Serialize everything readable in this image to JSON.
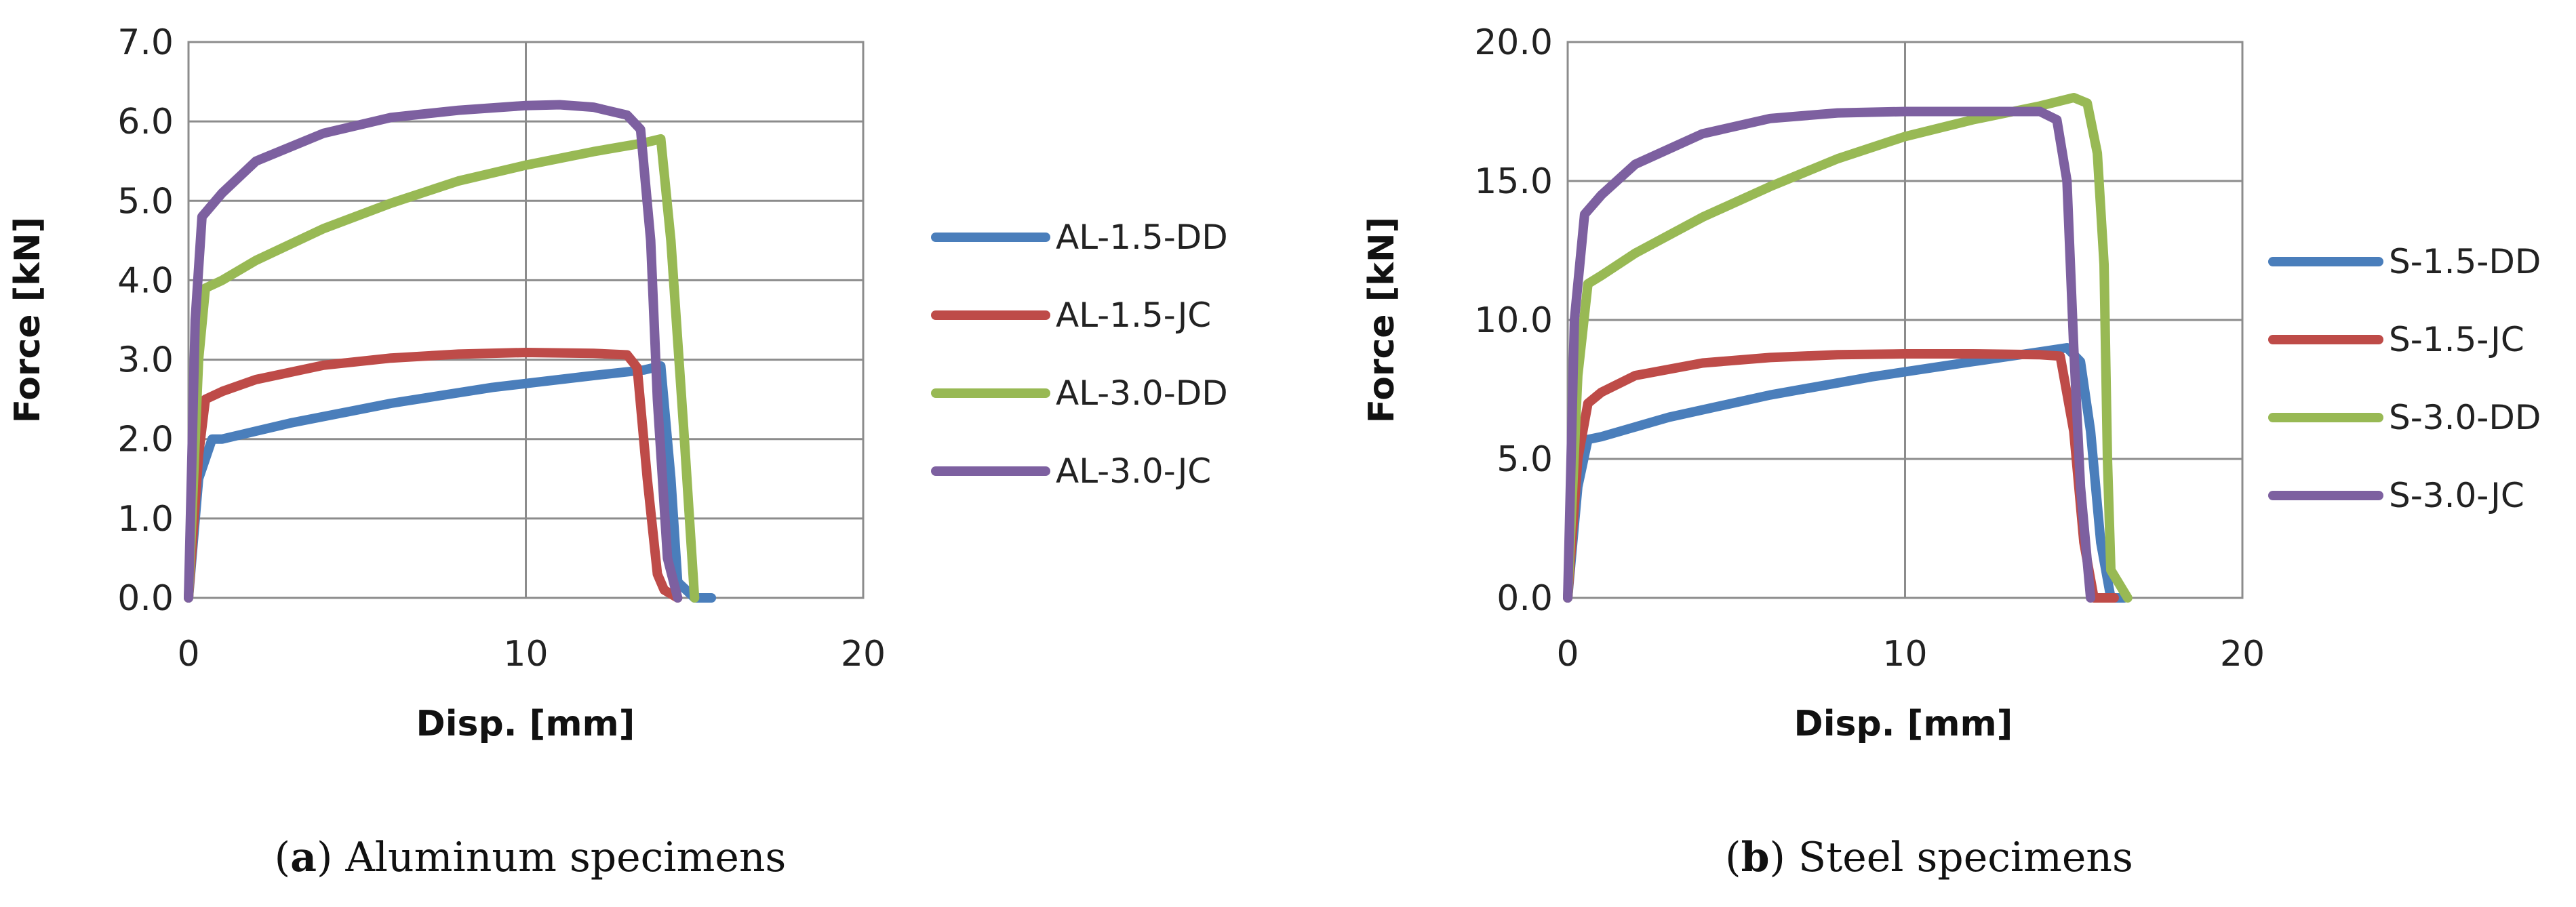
{
  "chart_data": [
    {
      "type": "line",
      "caption_letter": "a",
      "caption_text": "Aluminum specimens",
      "xlabel": "Disp. [mm]",
      "ylabel": "Force [kN]",
      "xlim": [
        0,
        20
      ],
      "ylim": [
        0,
        7
      ],
      "xticks": [
        0,
        10,
        20
      ],
      "xtick_labels": [
        "0",
        "10",
        "20"
      ],
      "yticks": [
        0,
        1,
        2,
        3,
        4,
        5,
        6,
        7
      ],
      "ytick_labels": [
        "0.0",
        "1.0",
        "2.0",
        "3.0",
        "4.0",
        "5.0",
        "6.0",
        "7.0"
      ],
      "grid": true,
      "legend_position": "right",
      "series": [
        {
          "name": "AL-1.5-DD",
          "color": "#4a7ebb",
          "points": [
            [
              0,
              0
            ],
            [
              0.3,
              1.5
            ],
            [
              0.7,
              2.0
            ],
            [
              1,
              2.0
            ],
            [
              3,
              2.2
            ],
            [
              6,
              2.45
            ],
            [
              9,
              2.65
            ],
            [
              12,
              2.8
            ],
            [
              13.5,
              2.87
            ],
            [
              14,
              2.92
            ],
            [
              14.3,
              1.5
            ],
            [
              14.5,
              0.2
            ],
            [
              15,
              0
            ],
            [
              15.5,
              0
            ]
          ]
        },
        {
          "name": "AL-1.5-JC",
          "color": "#be4b48",
          "points": [
            [
              0,
              0
            ],
            [
              0.3,
              1.8
            ],
            [
              0.5,
              2.5
            ],
            [
              1,
              2.6
            ],
            [
              2,
              2.75
            ],
            [
              4,
              2.93
            ],
            [
              6,
              3.02
            ],
            [
              8,
              3.07
            ],
            [
              10,
              3.09
            ],
            [
              12,
              3.08
            ],
            [
              13,
              3.06
            ],
            [
              13.3,
              2.9
            ],
            [
              13.6,
              1.5
            ],
            [
              13.9,
              0.3
            ],
            [
              14.1,
              0.1
            ],
            [
              14.5,
              0
            ]
          ]
        },
        {
          "name": "AL-3.0-DD",
          "color": "#98b954",
          "points": [
            [
              0,
              0
            ],
            [
              0.3,
              3.0
            ],
            [
              0.5,
              3.9
            ],
            [
              1,
              4.0
            ],
            [
              2,
              4.25
            ],
            [
              4,
              4.65
            ],
            [
              6,
              4.97
            ],
            [
              8,
              5.25
            ],
            [
              10,
              5.45
            ],
            [
              12,
              5.62
            ],
            [
              13.5,
              5.73
            ],
            [
              14,
              5.78
            ],
            [
              14.3,
              4.5
            ],
            [
              14.7,
              2.0
            ],
            [
              15,
              0
            ]
          ]
        },
        {
          "name": "AL-3.0-JC",
          "color": "#7d60a0",
          "points": [
            [
              0,
              0
            ],
            [
              0.2,
              3.5
            ],
            [
              0.4,
              4.8
            ],
            [
              1,
              5.1
            ],
            [
              2,
              5.5
            ],
            [
              4,
              5.85
            ],
            [
              6,
              6.05
            ],
            [
              8,
              6.14
            ],
            [
              10,
              6.2
            ],
            [
              11,
              6.21
            ],
            [
              12,
              6.18
            ],
            [
              13,
              6.08
            ],
            [
              13.4,
              5.9
            ],
            [
              13.7,
              4.5
            ],
            [
              13.9,
              2.5
            ],
            [
              14.2,
              0.5
            ],
            [
              14.5,
              0
            ]
          ]
        }
      ]
    },
    {
      "type": "line",
      "caption_letter": "b",
      "caption_text": "Steel specimens",
      "xlabel": "Disp. [mm]",
      "ylabel": "Force [kN]",
      "xlim": [
        0,
        20
      ],
      "ylim": [
        0,
        20
      ],
      "xticks": [
        0,
        10,
        20
      ],
      "xtick_labels": [
        "0",
        "10",
        "20"
      ],
      "yticks": [
        0,
        5,
        10,
        15,
        20
      ],
      "ytick_labels": [
        "0.0",
        "5.0",
        "10.0",
        "15.0",
        "20.0"
      ],
      "grid": true,
      "legend_position": "right",
      "series": [
        {
          "name": "S-1.5-DD",
          "color": "#4a7ebb",
          "points": [
            [
              0,
              0
            ],
            [
              0.3,
              4.0
            ],
            [
              0.6,
              5.7
            ],
            [
              1,
              5.8
            ],
            [
              3,
              6.5
            ],
            [
              6,
              7.3
            ],
            [
              9,
              7.95
            ],
            [
              12,
              8.5
            ],
            [
              14,
              8.85
            ],
            [
              14.8,
              9.0
            ],
            [
              15.2,
              8.5
            ],
            [
              15.5,
              6.0
            ],
            [
              15.8,
              2.0
            ],
            [
              16.1,
              0
            ],
            [
              16.5,
              0
            ]
          ]
        },
        {
          "name": "S-1.5-JC",
          "color": "#be4b48",
          "points": [
            [
              0,
              0
            ],
            [
              0.3,
              5.0
            ],
            [
              0.6,
              7.0
            ],
            [
              1,
              7.4
            ],
            [
              2,
              8.0
            ],
            [
              4,
              8.45
            ],
            [
              6,
              8.65
            ],
            [
              8,
              8.75
            ],
            [
              10,
              8.78
            ],
            [
              12,
              8.78
            ],
            [
              14,
              8.75
            ],
            [
              14.6,
              8.7
            ],
            [
              15,
              6.0
            ],
            [
              15.3,
              2.0
            ],
            [
              15.6,
              0
            ],
            [
              16.2,
              0
            ]
          ]
        },
        {
          "name": "S-3.0-DD",
          "color": "#98b954",
          "points": [
            [
              0,
              0
            ],
            [
              0.3,
              8.0
            ],
            [
              0.6,
              11.3
            ],
            [
              1,
              11.6
            ],
            [
              2,
              12.4
            ],
            [
              4,
              13.7
            ],
            [
              6,
              14.8
            ],
            [
              8,
              15.8
            ],
            [
              10,
              16.6
            ],
            [
              12,
              17.2
            ],
            [
              14,
              17.7
            ],
            [
              15,
              18.0
            ],
            [
              15.4,
              17.8
            ],
            [
              15.7,
              16.0
            ],
            [
              15.9,
              12.0
            ],
            [
              16.0,
              5.0
            ],
            [
              16.1,
              1.0
            ],
            [
              16.4,
              0.4
            ],
            [
              16.6,
              0
            ]
          ]
        },
        {
          "name": "S-3.0-JC",
          "color": "#7d60a0",
          "points": [
            [
              0,
              0
            ],
            [
              0.2,
              10.0
            ],
            [
              0.5,
              13.8
            ],
            [
              1,
              14.5
            ],
            [
              2,
              15.6
            ],
            [
              4,
              16.7
            ],
            [
              6,
              17.25
            ],
            [
              8,
              17.45
            ],
            [
              10,
              17.5
            ],
            [
              12,
              17.5
            ],
            [
              14,
              17.5
            ],
            [
              14.5,
              17.2
            ],
            [
              14.8,
              15.0
            ],
            [
              15.0,
              9.0
            ],
            [
              15.2,
              4.0
            ],
            [
              15.5,
              0
            ]
          ]
        }
      ]
    }
  ]
}
